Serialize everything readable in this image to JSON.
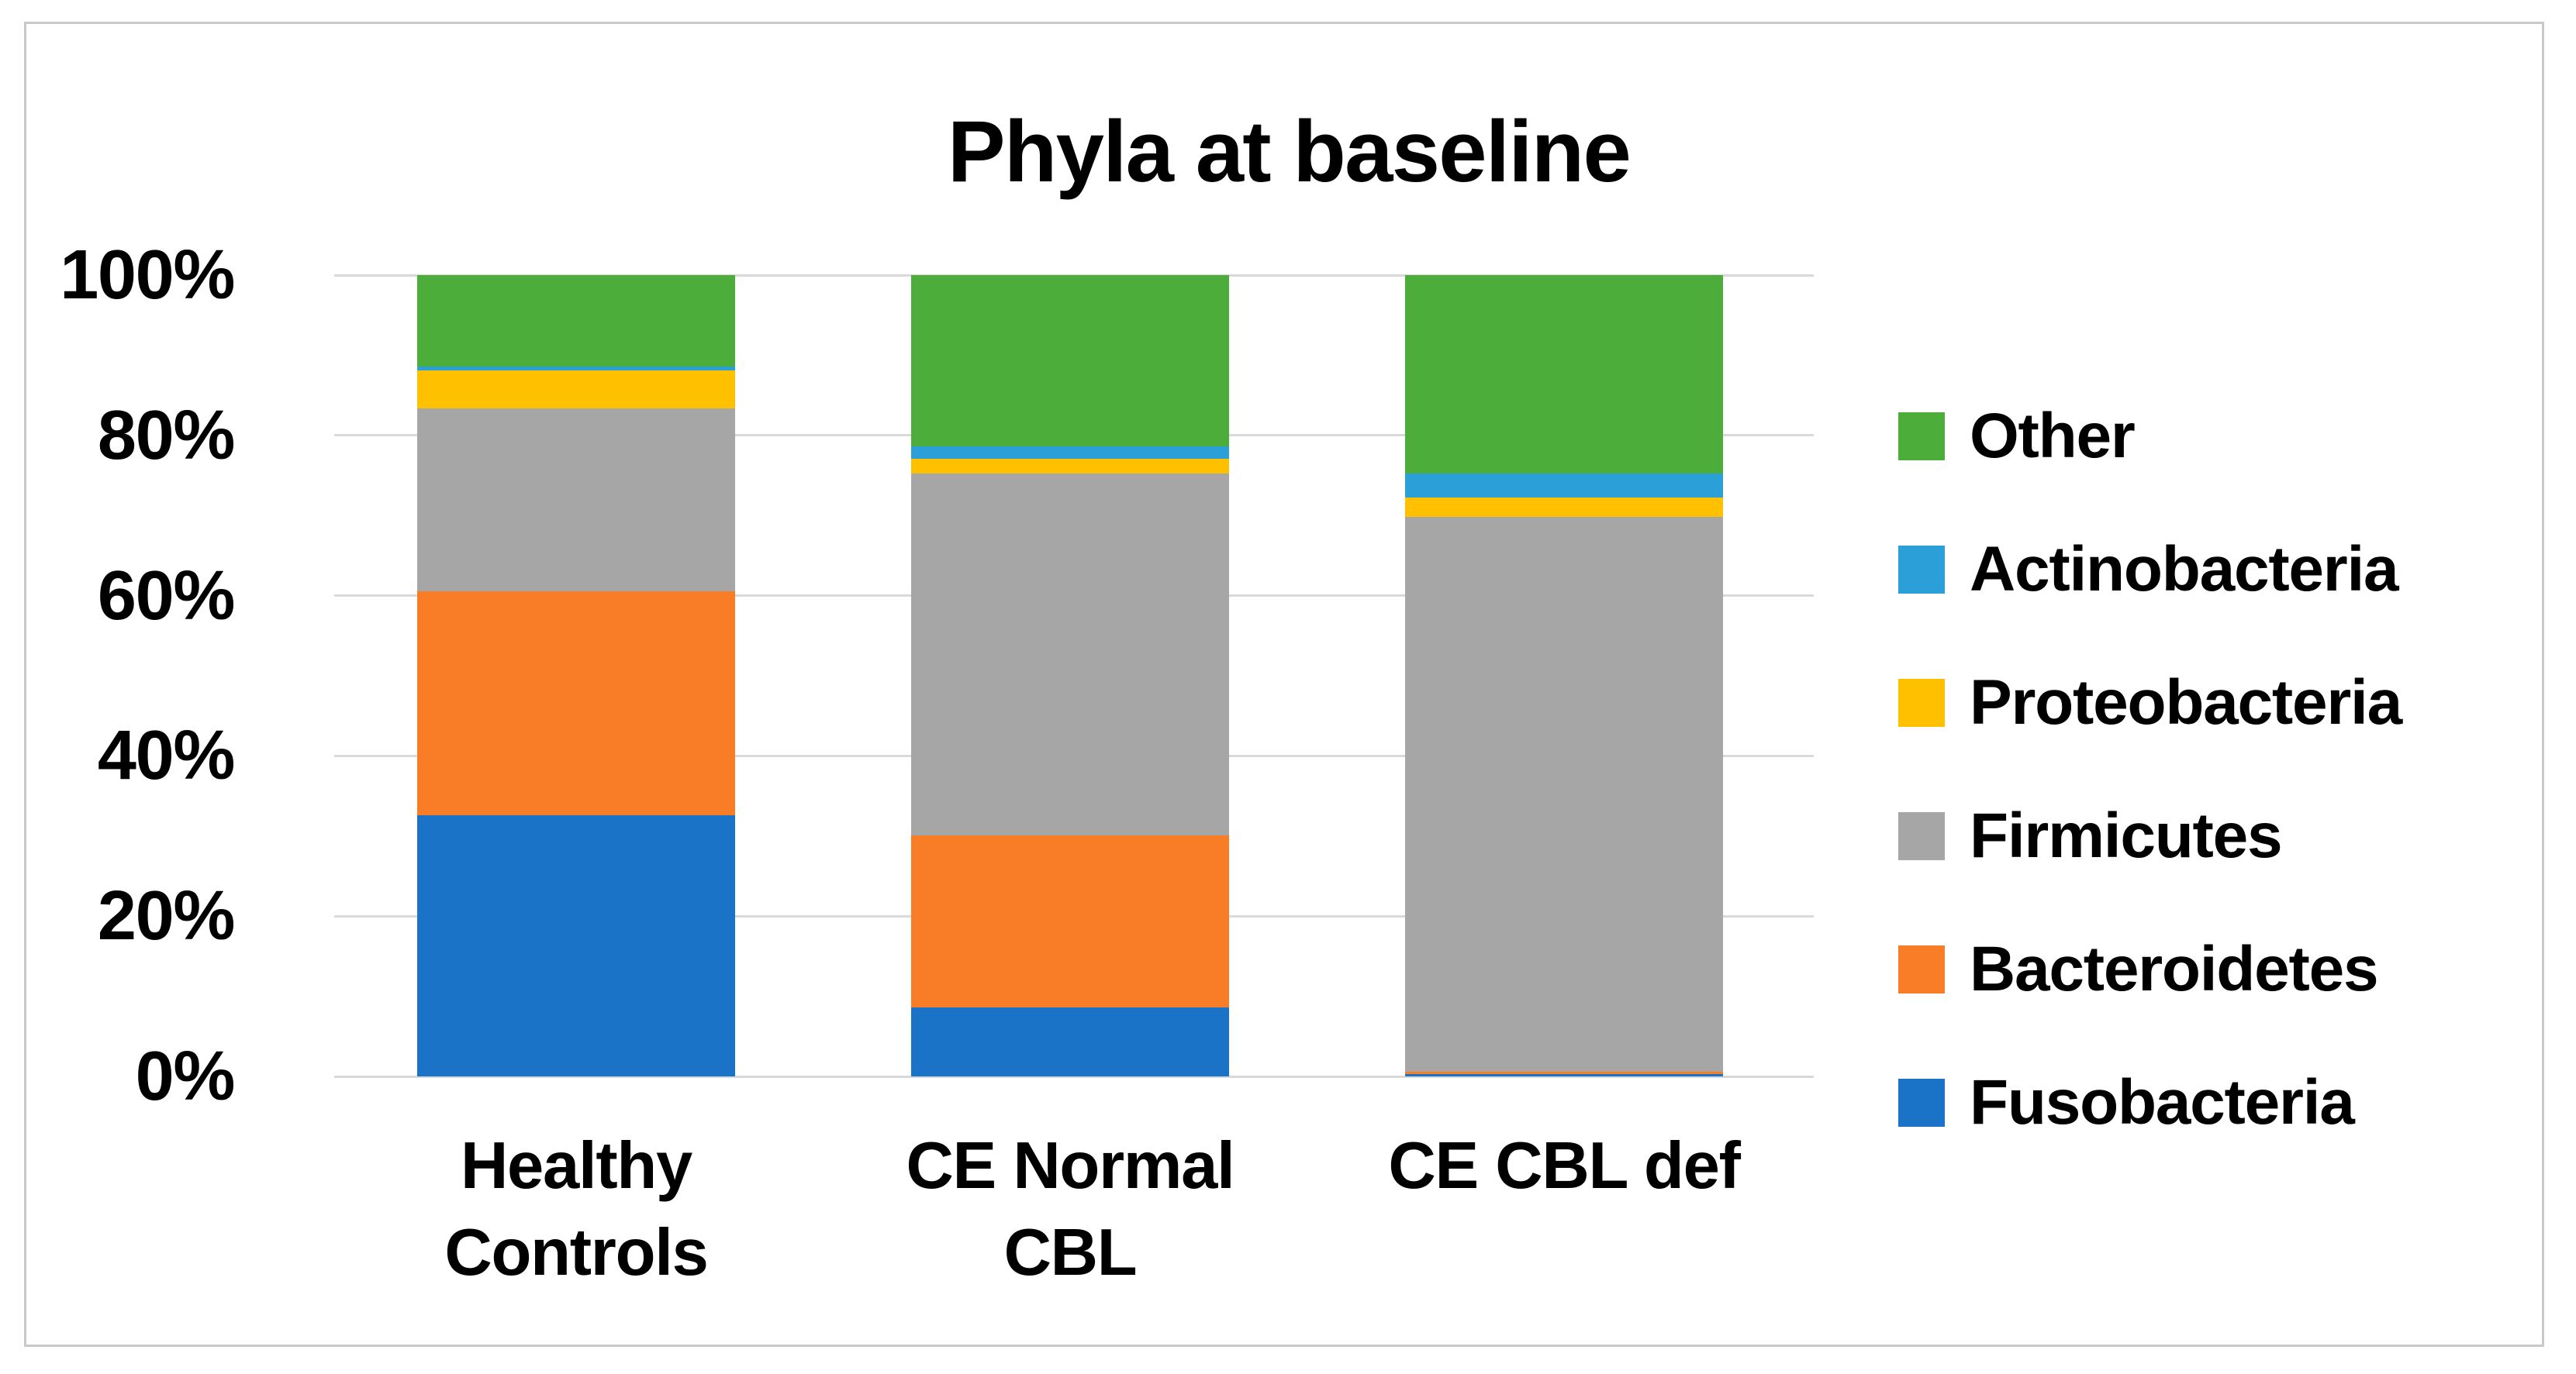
{
  "title": "Phyla at baseline",
  "chart_data": {
    "type": "bar",
    "stacked": true,
    "percent_stacked": true,
    "title": "Phyla at baseline",
    "categories": [
      "Healthy Controls",
      "CE Normal CBL",
      "CE CBL def"
    ],
    "category_labels_display": [
      "Healthy\nControls",
      "CE Normal\nCBL",
      "CE CBL def"
    ],
    "series": [
      {
        "name": "Fusobacteria",
        "color": "#1B73C7",
        "values": [
          32.6,
          8.6,
          0.3
        ]
      },
      {
        "name": "Bacteroidetes",
        "color": "#F97D26",
        "values": [
          27.9,
          21.5,
          0.3
        ]
      },
      {
        "name": "Firmicutes",
        "color": "#A6A6A6",
        "values": [
          22.9,
          45.1,
          69.2
        ]
      },
      {
        "name": "Proteobacteria",
        "color": "#FFC000",
        "values": [
          4.7,
          1.9,
          2.4
        ]
      },
      {
        "name": "Actinobacteria",
        "color": "#2A9FD8",
        "values": [
          0.5,
          1.5,
          3.0
        ]
      },
      {
        "name": "Other",
        "color": "#4CAD3B",
        "values": [
          11.4,
          21.4,
          24.8
        ]
      }
    ],
    "ylim": [
      0,
      100
    ],
    "y_tick_values": [
      0,
      20,
      40,
      60,
      80,
      100
    ],
    "y_tick_labels": [
      "0%",
      "20%",
      "40%",
      "60%",
      "80%",
      "100%"
    ],
    "grid": true,
    "gridline_color": "#D9D9D9",
    "frame_border_color": "#C9C9C9",
    "legend": {
      "position": "right",
      "order_top_to_bottom": [
        "Other",
        "Actinobacteria",
        "Proteobacteria",
        "Firmicutes",
        "Bacteroidetes",
        "Fusobacteria"
      ]
    }
  }
}
